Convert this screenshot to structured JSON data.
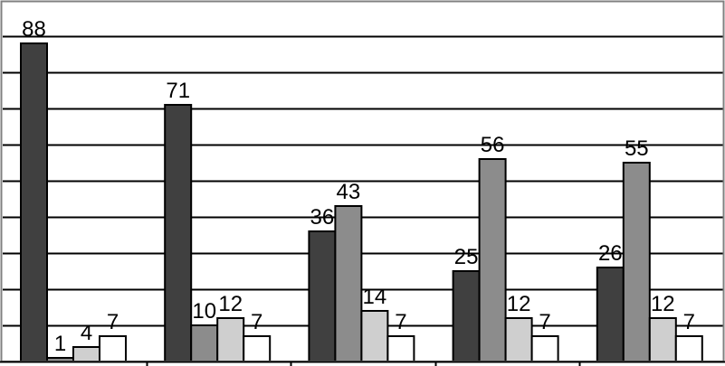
{
  "chart_data": {
    "type": "bar",
    "title": "",
    "xlabel": "",
    "ylabel": "",
    "ylim": [
      0,
      100
    ],
    "grid": true,
    "categories": [
      "",
      "",
      "",
      "",
      ""
    ],
    "colors": [
      "#404040",
      "#8c8c8c",
      "#cfcfcf",
      "#ffffff"
    ],
    "series": [
      {
        "values": [
          88,
          71,
          36,
          25,
          26
        ]
      },
      {
        "values": [
          1,
          10,
          43,
          56,
          55
        ]
      },
      {
        "values": [
          4,
          12,
          14,
          12,
          12
        ]
      },
      {
        "values": [
          7,
          7,
          7,
          7,
          7
        ]
      }
    ]
  }
}
